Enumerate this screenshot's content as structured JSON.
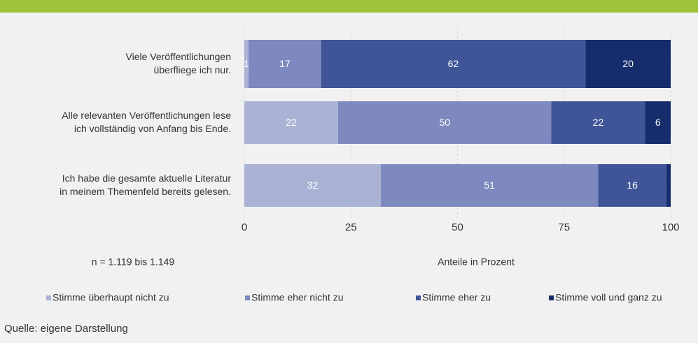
{
  "chart_data": {
    "type": "stacked-bar-horizontal",
    "categories": [
      [
        "Viele Veröffentlichungen",
        "überfliege ich nur."
      ],
      [
        "Alle relevanten Veröffentlichungen lese",
        "ich vollständig von Anfang bis Ende."
      ],
      [
        "Ich habe die gesamte aktuelle Literatur",
        "in meinem Themenfeld bereits gelesen."
      ]
    ],
    "series": [
      {
        "name": "Stimme überhaupt nicht zu",
        "color": "#aab3d4",
        "values": [
          1,
          22,
          32
        ]
      },
      {
        "name": "Stimme eher nicht zu",
        "color": "#7d89bf",
        "values": [
          17,
          50,
          51
        ]
      },
      {
        "name": "Stimme eher zu",
        "color": "#3f5597",
        "values": [
          62,
          22,
          16
        ]
      },
      {
        "name": "Stimme voll und ganz zu",
        "color": "#162c6b",
        "values": [
          20,
          6,
          1
        ],
        "value_labels": [
          "20",
          "6",
          null
        ]
      }
    ],
    "xlim": [
      0,
      100
    ],
    "xticks": [
      0,
      25,
      50,
      75,
      100
    ],
    "xlabel": "Anteile in Prozent",
    "annotation": "n = 1.119 bis 1.149",
    "source": "Quelle: eigene Darstellung",
    "grid": true,
    "legend": "bottom"
  }
}
